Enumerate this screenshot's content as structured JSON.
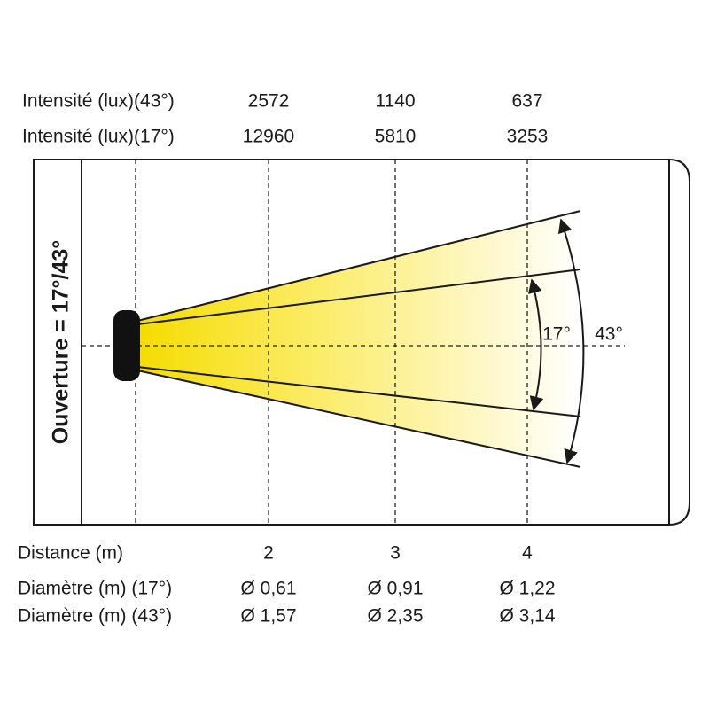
{
  "intensity_rows": [
    {
      "label": "Intensité (lux)(43°)",
      "values": [
        "2572",
        "1140",
        "637"
      ]
    },
    {
      "label": "Intensité (lux)(17°)",
      "values": [
        "12960",
        "5810",
        "3253"
      ]
    }
  ],
  "aperture_label": "Ouverture = 17°/43°",
  "angle_labels": [
    "17°",
    "43°"
  ],
  "distance_row": {
    "label": "Distance (m)",
    "values": [
      "2",
      "3",
      "4"
    ]
  },
  "diameter_rows": [
    {
      "label": "Diamètre (m) (17°)",
      "values": [
        "Ø 0,61",
        "Ø 0,91",
        "Ø 1,22"
      ]
    },
    {
      "label": "Diamètre (m) (43°)",
      "values": [
        "Ø 1,57",
        "Ø 2,35",
        "Ø 3,14"
      ]
    }
  ]
}
